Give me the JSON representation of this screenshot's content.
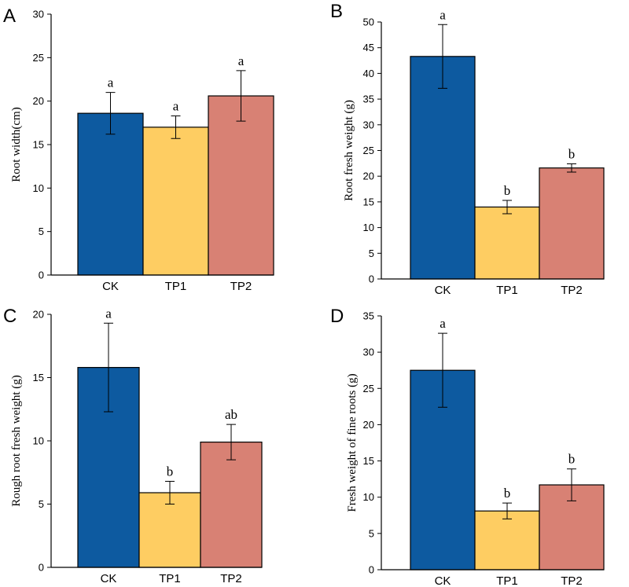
{
  "colors": {
    "CK": "#0d5aa0",
    "TP1": "#fecd62",
    "TP2": "#d88174"
  },
  "chart_data": [
    {
      "type": "bar",
      "panel": "A",
      "ylabel": "Root width(cm)",
      "categories": [
        "CK",
        "TP1",
        "TP2"
      ],
      "values": [
        18.6,
        17.0,
        20.6
      ],
      "errors": [
        2.4,
        1.3,
        2.9
      ],
      "significance": [
        "a",
        "a",
        "a"
      ],
      "ylim": [
        0,
        30
      ],
      "yticks": [
        0,
        5,
        10,
        15,
        20,
        25,
        30
      ]
    },
    {
      "type": "bar",
      "panel": "B",
      "ylabel": "Root fresh weight (g)",
      "categories": [
        "CK",
        "TP1",
        "TP2"
      ],
      "values": [
        43.3,
        14.0,
        21.6
      ],
      "errors": [
        6.2,
        1.3,
        0.8
      ],
      "significance": [
        "a",
        "b",
        "b"
      ],
      "ylim": [
        0,
        50
      ],
      "yticks": [
        0,
        5,
        10,
        15,
        20,
        25,
        30,
        35,
        40,
        45,
        50
      ]
    },
    {
      "type": "bar",
      "panel": "C",
      "ylabel": "Rough root fresh weight (g)",
      "categories": [
        "CK",
        "TP1",
        "TP2"
      ],
      "values": [
        15.8,
        5.9,
        9.9
      ],
      "errors": [
        3.5,
        0.9,
        1.4
      ],
      "significance": [
        "a",
        "b",
        "ab"
      ],
      "ylim": [
        0,
        20
      ],
      "yticks": [
        0,
        5,
        10,
        15,
        20
      ]
    },
    {
      "type": "bar",
      "panel": "D",
      "ylabel": "Fresh weight of fine roots (g)",
      "categories": [
        "CK",
        "TP1",
        "TP2"
      ],
      "values": [
        27.5,
        8.1,
        11.7
      ],
      "errors": [
        5.1,
        1.1,
        2.2
      ],
      "significance": [
        "a",
        "b",
        "b"
      ],
      "ylim": [
        0,
        35
      ],
      "yticks": [
        0,
        5,
        10,
        15,
        20,
        25,
        30,
        35
      ]
    }
  ]
}
